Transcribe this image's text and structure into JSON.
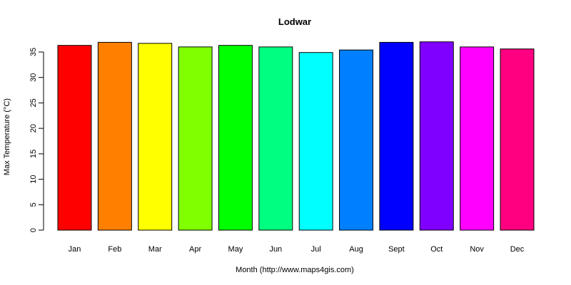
{
  "chart_data": {
    "type": "bar",
    "title": "Lodwar",
    "xlabel": "Month (http://www.maps4gis.com)",
    "ylabel": "Max Temperature (°C)",
    "categories": [
      "Jan",
      "Feb",
      "Mar",
      "Apr",
      "May",
      "Jun",
      "Jul",
      "Aug",
      "Sept",
      "Oct",
      "Nov",
      "Dec"
    ],
    "values": [
      36.3,
      36.9,
      36.7,
      36.0,
      36.3,
      36.0,
      34.9,
      35.4,
      36.9,
      37.0,
      36.0,
      35.6
    ],
    "colors": [
      "#ff0000",
      "#ff8000",
      "#ffff00",
      "#80ff00",
      "#00ff00",
      "#00ff80",
      "#00ffff",
      "#0080ff",
      "#0000ff",
      "#8000ff",
      "#ff00ff",
      "#ff0080"
    ],
    "yticks": [
      0,
      5,
      10,
      15,
      20,
      25,
      30,
      35
    ],
    "ylim": [
      0,
      37
    ],
    "grid": false,
    "legend": "none"
  }
}
